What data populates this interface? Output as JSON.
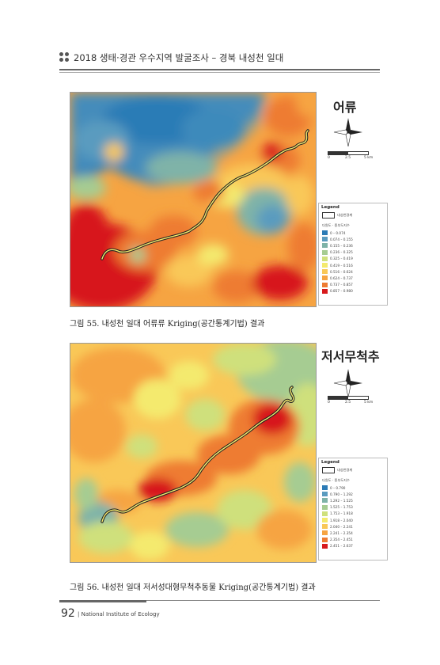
{
  "header": {
    "title": "2018 생태·경관 우수지역 발굴조사 – 경북 내성천 일대"
  },
  "figures": [
    {
      "side_title": "어류",
      "caption": "그림 55. 내성천 일대 어류류 Kriging(공간통계기법) 결과",
      "scale_labels": [
        "0",
        "2.5",
        "5 km"
      ],
      "legend": {
        "title": "Legend",
        "river_label": "내성천경계",
        "subtitle": "다원도 · 종부도지수",
        "classes": [
          {
            "label": "0 – 0.074",
            "color": "#2c7bb6"
          },
          {
            "label": "0.074 – 0.155",
            "color": "#5a9bbf"
          },
          {
            "label": "0.155 – 0.236",
            "color": "#7fb3a8"
          },
          {
            "label": "0.236 – 0.325",
            "color": "#a6cc92"
          },
          {
            "label": "0.325 – 0.419",
            "color": "#cfe07c"
          },
          {
            "label": "0.419 – 0.516",
            "color": "#f4ea6e"
          },
          {
            "label": "0.516 – 0.624",
            "color": "#f9c858"
          },
          {
            "label": "0.624 – 0.737",
            "color": "#f6a442"
          },
          {
            "label": "0.737 – 0.857",
            "color": "#ee7b32"
          },
          {
            "label": "0.857 – 0.980",
            "color": "#d7191c"
          }
        ]
      }
    },
    {
      "side_title": "저서무척추",
      "caption": "그림 56. 내성천 일대 저서성대형무척추동물 Kriging(공간통계기법) 결과",
      "scale_labels": [
        "0",
        "2.5",
        "5 km"
      ],
      "legend": {
        "title": "Legend",
        "river_label": "내성천경계",
        "subtitle": "다원도 · 종부도지수",
        "classes": [
          {
            "label": "0 – 0.790",
            "color": "#2c7bb6"
          },
          {
            "label": "0.790 – 1.292",
            "color": "#5a9bbf"
          },
          {
            "label": "1.292 – 1.525",
            "color": "#7fb3a8"
          },
          {
            "label": "1.525 – 1.753",
            "color": "#a6cc92"
          },
          {
            "label": "1.753 – 1.918",
            "color": "#cfe07c"
          },
          {
            "label": "1.918 – 2.040",
            "color": "#f4ea6e"
          },
          {
            "label": "2.040 – 2.241",
            "color": "#f9c858"
          },
          {
            "label": "2.241 – 2.354",
            "color": "#f6a442"
          },
          {
            "label": "2.354 – 2.451",
            "color": "#ee7b32"
          },
          {
            "label": "2.451 – 2.637",
            "color": "#d7191c"
          }
        ]
      }
    }
  ],
  "footer": {
    "page_number": "92",
    "text": "| National Institute of Ecology"
  }
}
